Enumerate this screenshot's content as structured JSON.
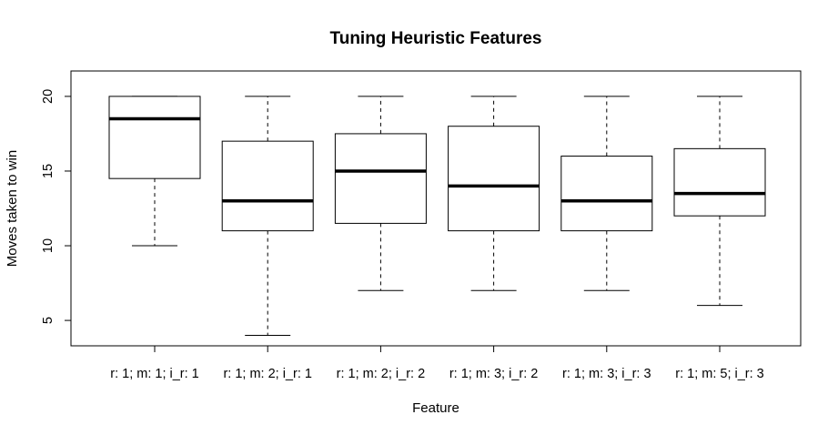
{
  "chart_data": {
    "type": "boxplot",
    "title": "Tuning Heuristic Features",
    "xlabel": "Feature",
    "ylabel": "Moves taken to win",
    "ylim": [
      3.3,
      21.7
    ],
    "yticks": [
      5,
      10,
      15,
      20
    ],
    "grid": false,
    "categories": [
      "r: 1; m: 1; i_r: 1",
      "r: 1; m: 2; i_r: 1",
      "r: 1; m: 2; i_r: 2",
      "r: 1; m: 3; i_r: 2",
      "r: 1; m: 3; i_r: 3",
      "r: 1; m: 5; i_r: 3"
    ],
    "boxes": [
      {
        "min": 10,
        "q1": 14.5,
        "median": 18.5,
        "q3": 20,
        "max": 20
      },
      {
        "min": 4,
        "q1": 11,
        "median": 13,
        "q3": 17,
        "max": 20
      },
      {
        "min": 7,
        "q1": 11.5,
        "median": 15,
        "q3": 17.5,
        "max": 20
      },
      {
        "min": 7,
        "q1": 11,
        "median": 14,
        "q3": 18,
        "max": 20
      },
      {
        "min": 7,
        "q1": 11,
        "median": 13,
        "q3": 16,
        "max": 20
      },
      {
        "min": 6,
        "q1": 12,
        "median": 13.5,
        "q3": 16.5,
        "max": 20
      }
    ],
    "colors": {
      "stroke": "#000000",
      "box_fill": "#ffffff",
      "background": "#ffffff"
    }
  }
}
